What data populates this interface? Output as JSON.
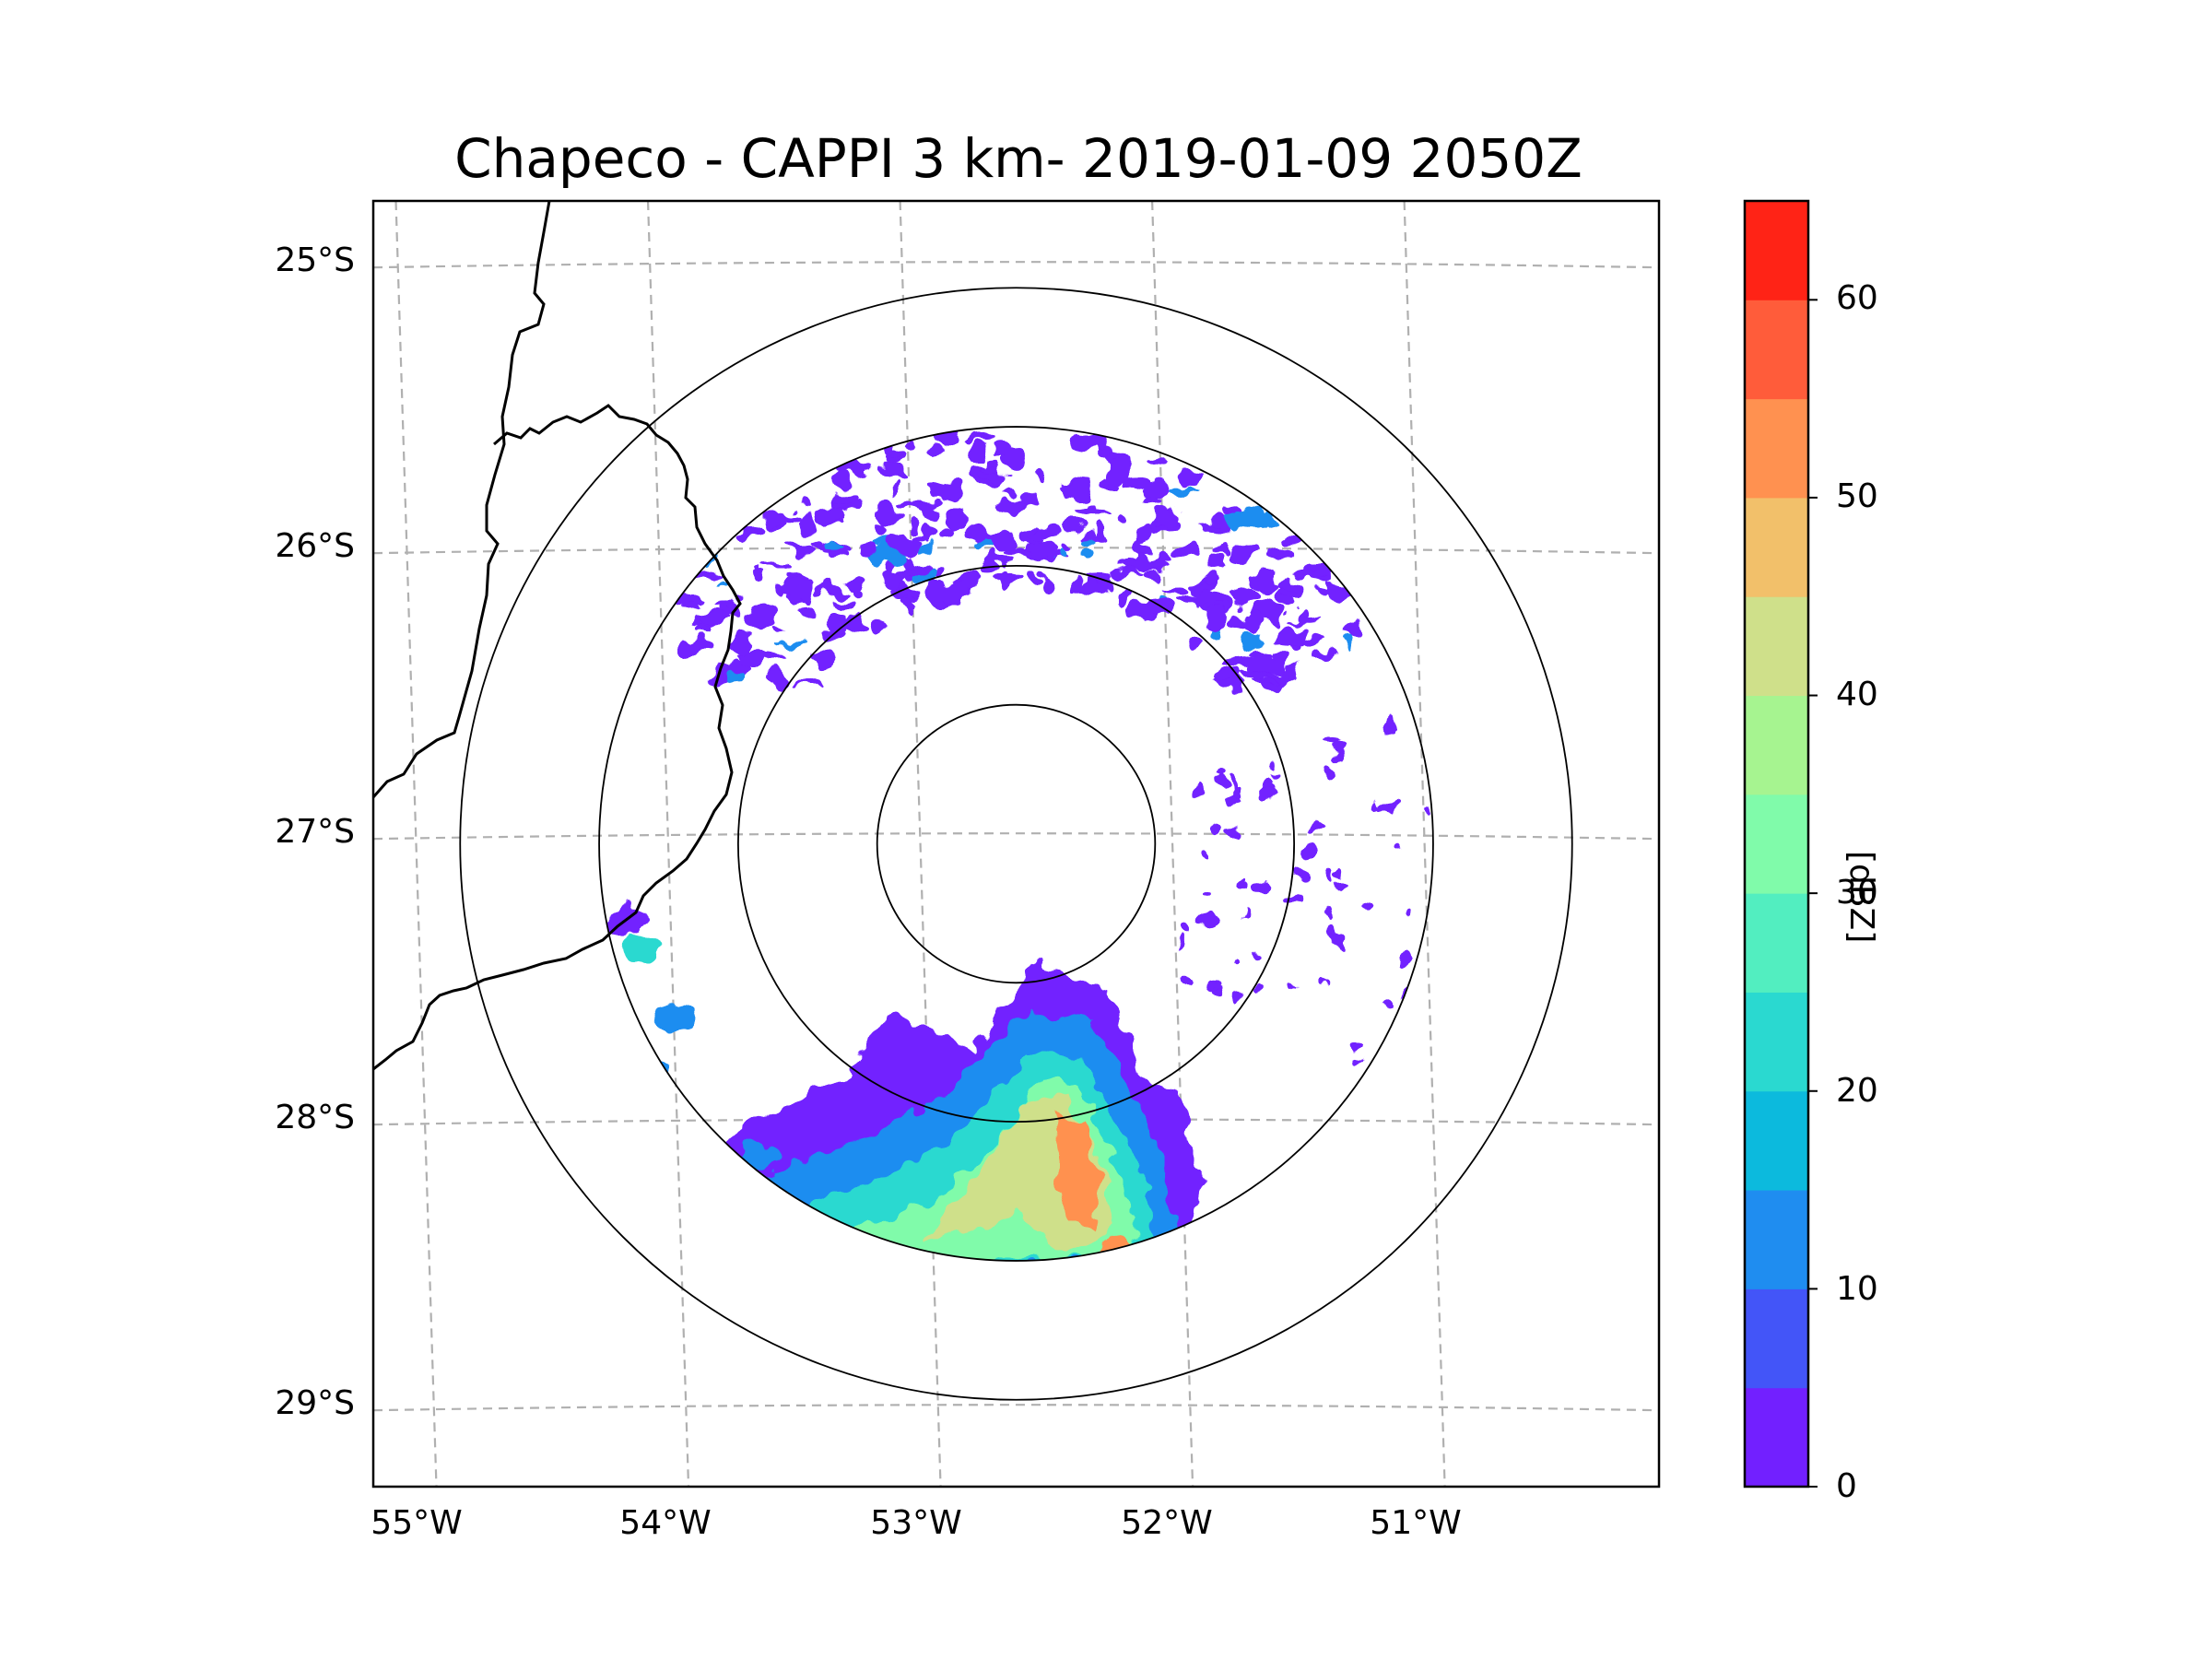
{
  "figure": {
    "title": "Chapeco - CAPPI 3 km- 2019-01-09 2050Z"
  },
  "map": {
    "lat_labels": [
      "25°S",
      "26°S",
      "27°S",
      "28°S",
      "29°S"
    ],
    "lon_labels": [
      "55°W",
      "54°W",
      "53°W",
      "52°W",
      "51°W"
    ],
    "lat_values": [
      -25,
      -26,
      -27,
      -28,
      -29
    ],
    "lon_values": [
      -55,
      -54,
      -53,
      -52,
      -51
    ],
    "extent": {
      "lon_min": -55.17,
      "lon_max": -50.07,
      "lat_min": -29.28,
      "lat_max": -24.78
    },
    "radar_center": {
      "lon": -52.62,
      "lat": -27.03
    },
    "range_rings_km": [
      50,
      100,
      150,
      200
    ]
  },
  "colorbar": {
    "label": "[dBZ]",
    "tick_labels": [
      "0",
      "10",
      "20",
      "30",
      "40",
      "50",
      "60"
    ],
    "tick_values": [
      0,
      10,
      20,
      30,
      40,
      50,
      60
    ],
    "vmin": 0,
    "vmax": 65,
    "levels": [
      0,
      5,
      10,
      15,
      20,
      25,
      30,
      35,
      40,
      45,
      50,
      55,
      60,
      65
    ],
    "colors": [
      "#7220ff",
      "#4355f8",
      "#1f8df0",
      "#0cbadd",
      "#2ad9d0",
      "#52eec0",
      "#80fbaa",
      "#a6f490",
      "#cfe08a",
      "#f2c06a",
      "#ff9150",
      "#ff5c3a",
      "#ff2316"
    ]
  }
}
